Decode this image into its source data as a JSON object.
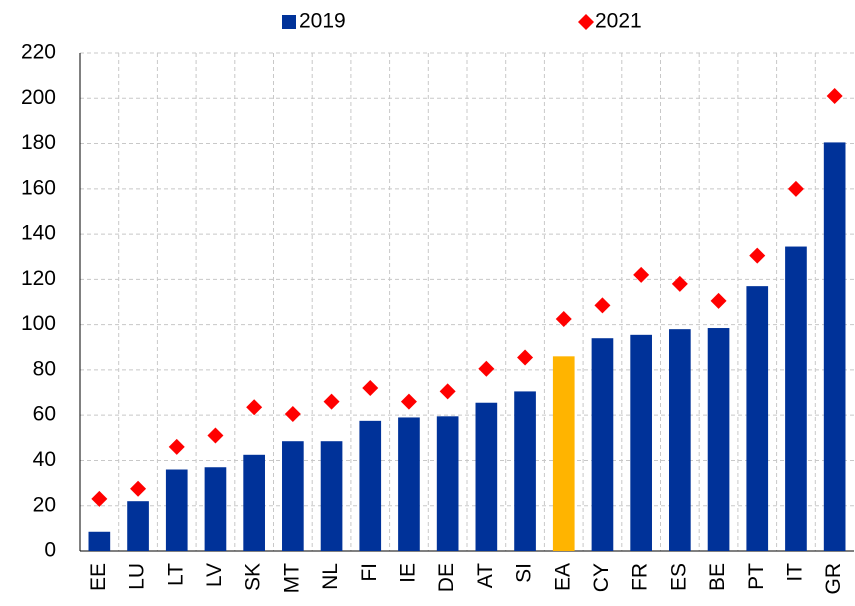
{
  "chart_data": {
    "type": "bar",
    "categories": [
      "EE",
      "LU",
      "LT",
      "LV",
      "SK",
      "MT",
      "NL",
      "FI",
      "IE",
      "DE",
      "AT",
      "SI",
      "EA",
      "CY",
      "FR",
      "ES",
      "BE",
      "PT",
      "IT",
      "GR"
    ],
    "series": [
      {
        "name": "2019",
        "type": "bar",
        "color": "#003299",
        "colors": [
          "#003299",
          "#003299",
          "#003299",
          "#003299",
          "#003299",
          "#003299",
          "#003299",
          "#003299",
          "#003299",
          "#003299",
          "#003299",
          "#003299",
          "#ffb400",
          "#003299",
          "#003299",
          "#003299",
          "#003299",
          "#003299",
          "#003299",
          "#003299"
        ],
        "values": [
          8.5,
          22,
          36,
          37,
          42.5,
          48.5,
          48.5,
          57.5,
          59,
          59.5,
          65.5,
          70.5,
          86,
          94,
          95.5,
          98,
          98.5,
          117,
          134.5,
          180.5
        ]
      },
      {
        "name": "2021",
        "type": "marker",
        "color": "#ff0000",
        "values": [
          23,
          27.5,
          46,
          51,
          63.5,
          60.5,
          66,
          72,
          66,
          70.5,
          80.5,
          85.5,
          102.5,
          108.5,
          122,
          118,
          110.5,
          130.5,
          160,
          201
        ]
      }
    ],
    "ylim": [
      0,
      220
    ],
    "yticks": [
      0,
      20,
      40,
      60,
      80,
      100,
      120,
      140,
      160,
      180,
      200,
      220
    ],
    "grid": true,
    "legend": "top"
  }
}
